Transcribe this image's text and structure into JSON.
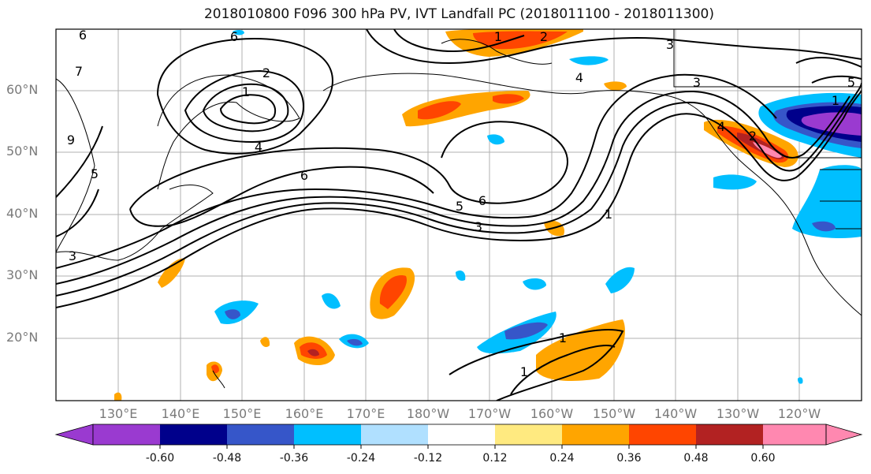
{
  "title": "2018010800 F096 300 hPa PV, IVT Landfall PC (2018011100 - 2018011300)",
  "lat_labels": [
    "60°N",
    "50°N",
    "40°N",
    "30°N",
    "20°N"
  ],
  "lon_labels": [
    "130°E",
    "140°E",
    "150°E",
    "160°E",
    "170°E",
    "180°W",
    "170°W",
    "160°W",
    "150°W",
    "140°W",
    "130°W",
    "120°W"
  ],
  "colorbar": {
    "ticks": [
      "-0.60",
      "-0.48",
      "-0.36",
      "-0.24",
      "-0.12",
      "0.12",
      "0.24",
      "0.36",
      "0.48",
      "0.60"
    ],
    "colors": [
      "#9a3ad0",
      "#00008b",
      "#3656c9",
      "#00bfff",
      "#b0e0ff",
      "#ffffff",
      "#ffea80",
      "#ffa500",
      "#ff4500",
      "#b22222",
      "#ff88b0"
    ]
  },
  "contour_labels": [
    "6",
    "6",
    "7",
    "2",
    "1",
    "2",
    "4",
    "5",
    "6",
    "5",
    "6",
    "3",
    "1",
    "3",
    "3",
    "4",
    "1",
    "1",
    "1",
    "5",
    "1",
    "2",
    "4",
    "9",
    "3"
  ],
  "colors": {
    "grid": "#b0b0b0",
    "contour": "#000000",
    "frame": "#000000",
    "tick_text": "#7a7a7a"
  }
}
